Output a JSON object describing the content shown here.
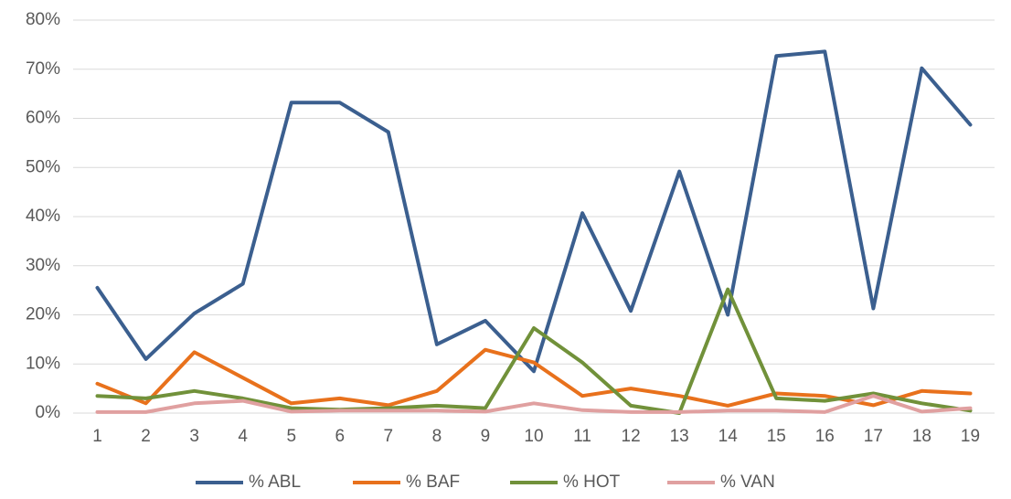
{
  "chart_data": {
    "type": "line",
    "categories": [
      "1",
      "2",
      "3",
      "4",
      "5",
      "6",
      "7",
      "8",
      "9",
      "10",
      "11",
      "12",
      "13",
      "14",
      "15",
      "16",
      "17",
      "18",
      "19"
    ],
    "series": [
      {
        "name": "% ABL",
        "color": "#3b5f8f",
        "values": [
          25.5,
          11,
          20.3,
          26.3,
          63.2,
          63.2,
          57.2,
          14,
          18.8,
          8.5,
          40.7,
          20.8,
          49.2,
          20,
          72.7,
          73.6,
          21.3,
          70.2,
          58.7
        ]
      },
      {
        "name": "% BAF",
        "color": "#e8711c",
        "values": [
          6,
          2,
          12.4,
          7.2,
          2,
          3,
          1.6,
          4.5,
          12.9,
          10.3,
          3.5,
          5,
          3.5,
          1.5,
          4,
          3.5,
          1.6,
          4.5,
          4
        ]
      },
      {
        "name": "% HOT",
        "color": "#71913a",
        "values": [
          3.5,
          3,
          4.5,
          3,
          1,
          0.7,
          1,
          1.5,
          1,
          17.3,
          10.3,
          1.5,
          0,
          25.2,
          3,
          2.5,
          4,
          2,
          0.5
        ]
      },
      {
        "name": "% VAN",
        "color": "#e0a0a0",
        "values": [
          0.2,
          0.2,
          2,
          2.5,
          0.3,
          0.5,
          0.5,
          0.5,
          0.3,
          2,
          0.6,
          0.2,
          0.2,
          0.5,
          0.5,
          0.2,
          3.5,
          0.3,
          1
        ]
      }
    ],
    "ylim": [
      0,
      80
    ],
    "yticks": [
      {
        "value": 0,
        "label": "0%"
      },
      {
        "value": 10,
        "label": "10%"
      },
      {
        "value": 20,
        "label": "20%"
      },
      {
        "value": 30,
        "label": "30%"
      },
      {
        "value": 40,
        "label": "40%"
      },
      {
        "value": 50,
        "label": "50%"
      },
      {
        "value": 60,
        "label": "60%"
      },
      {
        "value": 70,
        "label": "70%"
      },
      {
        "value": 80,
        "label": "80%"
      }
    ],
    "grid": true,
    "legend": "bottom"
  }
}
